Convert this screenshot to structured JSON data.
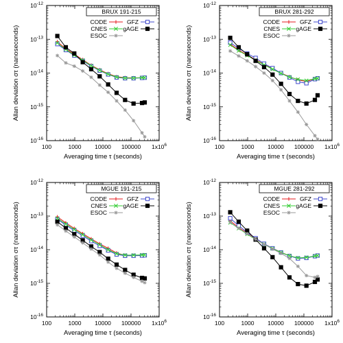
{
  "chart_data": [
    {
      "type": "line",
      "title": "BRUX 191-215",
      "xlabel": "Averaging time τ (seconds)",
      "ylabel": "Allan deviation στ (nanoseconds)",
      "x_scale": "log",
      "y_scale": "log",
      "xlim": [
        100,
        1000000
      ],
      "ylim": [
        1e-16,
        1e-12
      ],
      "x_tick_labels": [
        "100",
        "1000",
        "10000",
        "100000",
        "1x10"
      ],
      "x_tick_label_exponent": "6",
      "y_tick_labels": [
        "10",
        "10",
        "10",
        "10",
        "10"
      ],
      "y_tick_label_exponents": [
        "-12",
        "-13",
        "-14",
        "-15",
        "-16"
      ],
      "legend_placement": "top-right",
      "series": [
        {
          "name": "CODE",
          "color": "#e41a1c",
          "marker": "plus",
          "x": [
            240,
            480,
            960,
            1920,
            3840,
            7680,
            15360,
            30720,
            61440,
            122880,
            245760,
            307200
          ],
          "y": [
            8.5e-14,
            5.2e-14,
            3.6e-14,
            2.5e-14,
            1.7e-14,
            1.25e-14,
            9.6e-15,
            7.8e-15,
            7.3e-15,
            7.2e-15,
            7.3e-15,
            7.4e-15
          ]
        },
        {
          "name": "GFZ",
          "color": "#3f48cc",
          "marker": "open-square",
          "x": [
            240,
            480,
            960,
            1920,
            3840,
            7680,
            15360,
            30720,
            61440,
            122880,
            245760,
            307200
          ],
          "y": [
            7.2e-14,
            4.8e-14,
            3.3e-14,
            2.3e-14,
            1.6e-14,
            1.18e-14,
            9.1e-15,
            7.4e-15,
            7e-15,
            7e-15,
            7.2e-15,
            7.3e-15
          ]
        },
        {
          "name": "CNES",
          "color": "#33cc33",
          "marker": "cross",
          "x": [
            240,
            480,
            960,
            1920,
            3840,
            7680,
            15360,
            30720,
            61440,
            122880,
            245760,
            307200
          ],
          "y": [
            7.8e-14,
            5e-14,
            3.4e-14,
            2.4e-14,
            1.65e-14,
            1.2e-14,
            9.3e-15,
            7.6e-15,
            7.1e-15,
            7.1e-15,
            7.3e-15,
            7.3e-15
          ]
        },
        {
          "name": "gAGE",
          "color": "#000000",
          "marker": "filled-square",
          "x": [
            240,
            480,
            960,
            1920,
            3840,
            7680,
            15360,
            30720,
            61440,
            122880,
            245760,
            307200
          ],
          "y": [
            1.25e-13,
            5.8e-14,
            3.8e-14,
            2.1e-14,
            1.3e-14,
            8e-15,
            4.6e-15,
            2.6e-15,
            1.6e-15,
            1.25e-15,
            1.3e-15,
            1.35e-15
          ]
        },
        {
          "name": "ESOC",
          "color": "#999999",
          "marker": "asterisk",
          "x": [
            240,
            480,
            960,
            1920,
            3840,
            7680,
            15360,
            30720,
            61440,
            122880,
            245760,
            307200
          ],
          "y": [
            3.3e-14,
            2e-14,
            1.6e-14,
            1.15e-14,
            7.5e-15,
            4.4e-15,
            2.7e-15,
            1.5e-15,
            8e-16,
            3.9e-16,
            1.7e-16,
            1.3e-16
          ]
        }
      ]
    },
    {
      "type": "line",
      "title": "BRUX 281-292",
      "xlabel": "Averaging time τ (seconds)",
      "ylabel": "Allan deviation στ (nanoseconds)",
      "x_scale": "log",
      "y_scale": "log",
      "xlim": [
        100,
        1000000
      ],
      "ylim": [
        1e-16,
        1e-12
      ],
      "x_tick_labels": [
        "100",
        "1000",
        "10000",
        "100000",
        "1x10"
      ],
      "x_tick_label_exponent": "6",
      "y_tick_labels": [
        "10",
        "10",
        "10",
        "10",
        "10"
      ],
      "y_tick_label_exponents": [
        "-12",
        "-13",
        "-14",
        "-15",
        "-16"
      ],
      "legend_placement": "top-right",
      "series": [
        {
          "name": "CODE",
          "color": "#e41a1c",
          "marker": "plus",
          "x": [
            240,
            480,
            960,
            1920,
            3840,
            7680,
            15360,
            30720,
            61440,
            122880,
            245760,
            307200
          ],
          "y": [
            7.2e-14,
            4.8e-14,
            3.4e-14,
            2.5e-14,
            1.8e-14,
            1.35e-14,
            1e-14,
            7.8e-15,
            6.3e-15,
            5.6e-15,
            6.8e-15,
            7e-15
          ]
        },
        {
          "name": "GFZ",
          "color": "#3f48cc",
          "marker": "open-square",
          "x": [
            240,
            480,
            960,
            1920,
            3840,
            7680,
            15360,
            30720,
            61440,
            122880,
            245760,
            307200
          ],
          "y": [
            8e-14,
            5.4e-14,
            3.8e-14,
            2.8e-14,
            1.9e-14,
            1.4e-14,
            1e-14,
            7.4e-15,
            5.5e-15,
            5e-15,
            6.6e-15,
            7e-15
          ]
        },
        {
          "name": "CNES",
          "color": "#33cc33",
          "marker": "cross",
          "x": [
            240,
            480,
            960,
            1920,
            3840,
            7680,
            15360,
            30720,
            61440,
            122880,
            245760,
            307200
          ],
          "y": [
            6.8e-14,
            4.6e-14,
            3.3e-14,
            2.4e-14,
            1.75e-14,
            1.3e-14,
            9.8e-15,
            7.6e-15,
            6.5e-15,
            6e-15,
            6.8e-15,
            7e-15
          ]
        },
        {
          "name": "gAGE",
          "color": "#000000",
          "marker": "filled-square",
          "x": [
            240,
            480,
            960,
            1920,
            3840,
            7680,
            15360,
            30720,
            61440,
            122880,
            245760,
            307200
          ],
          "y": [
            1.1e-13,
            5.8e-14,
            3.6e-14,
            2.3e-14,
            1.5e-14,
            9e-15,
            4.8e-15,
            2.4e-15,
            1.5e-15,
            1.25e-15,
            1.6e-15,
            2.2e-15
          ]
        },
        {
          "name": "ESOC",
          "color": "#999999",
          "marker": "asterisk",
          "x": [
            240,
            480,
            960,
            1920,
            3840,
            7680,
            15360,
            30720,
            61440,
            122880,
            245760,
            307200
          ],
          "y": [
            4.5e-14,
            3.2e-14,
            2.3e-14,
            1.55e-14,
            1e-14,
            6e-15,
            3.2e-15,
            1.5e-15,
            7e-16,
            3e-16,
            1.4e-16,
            1.1e-16
          ]
        }
      ]
    },
    {
      "type": "line",
      "title": "MGUE 191-215",
      "xlabel": "Averaging time τ (seconds)",
      "ylabel": "Allan deviation στ (nanoseconds)",
      "x_scale": "log",
      "y_scale": "log",
      "xlim": [
        100,
        1000000
      ],
      "ylim": [
        1e-16,
        1e-12
      ],
      "x_tick_labels": [
        "100",
        "1000",
        "10000",
        "100000",
        "1x10"
      ],
      "x_tick_label_exponent": "6",
      "y_tick_labels": [
        "10",
        "10",
        "10",
        "10",
        "10"
      ],
      "y_tick_label_exponents": [
        "-12",
        "-13",
        "-14",
        "-15",
        "-16"
      ],
      "legend_placement": "top-right",
      "series": [
        {
          "name": "CODE",
          "color": "#e41a1c",
          "marker": "plus",
          "x": [
            240,
            480,
            960,
            1920,
            3840,
            7680,
            15360,
            30720,
            61440,
            122880,
            245760,
            307200
          ],
          "y": [
            9.5e-14,
            6.3e-14,
            4.3e-14,
            3e-14,
            2.1e-14,
            1.5e-14,
            1.1e-14,
            8e-15,
            6.8e-15,
            6.7e-15,
            6.8e-15,
            6.9e-15
          ]
        },
        {
          "name": "GFZ",
          "color": "#3f48cc",
          "marker": "open-square",
          "x": [
            240,
            480,
            960,
            1920,
            3840,
            7680,
            15360,
            30720,
            61440,
            122880,
            245760,
            307200
          ],
          "y": [
            8e-14,
            5.4e-14,
            3.7e-14,
            2.6e-14,
            1.8e-14,
            1.3e-14,
            9.5e-15,
            7.2e-15,
            6.6e-15,
            6.6e-15,
            6.7e-15,
            6.8e-15
          ]
        },
        {
          "name": "CNES",
          "color": "#33cc33",
          "marker": "cross",
          "x": [
            240,
            480,
            960,
            1920,
            3840,
            7680,
            15360,
            30720,
            61440,
            122880,
            245760,
            307200
          ],
          "y": [
            8.6e-14,
            5.8e-14,
            4e-14,
            2.8e-14,
            1.95e-14,
            1.4e-14,
            1e-14,
            7.6e-15,
            6.9e-15,
            6.9e-15,
            7e-15,
            7e-15
          ]
        },
        {
          "name": "gAGE",
          "color": "#000000",
          "marker": "filled-square",
          "x": [
            240,
            480,
            960,
            1920,
            3840,
            7680,
            15360,
            30720,
            61440,
            122880,
            245760,
            307200
          ],
          "y": [
            6.8e-14,
            4.4e-14,
            2.9e-14,
            1.9e-14,
            1.25e-14,
            8.5e-15,
            5.4e-15,
            3.6e-15,
            2.5e-15,
            1.8e-15,
            1.45e-15,
            1.4e-15
          ]
        },
        {
          "name": "ESOC",
          "color": "#999999",
          "marker": "asterisk",
          "x": [
            240,
            480,
            960,
            1920,
            3840,
            7680,
            15360,
            30720,
            61440,
            122880,
            245760,
            307200
          ],
          "y": [
            5.5e-14,
            3.6e-14,
            2.4e-14,
            1.6e-14,
            1.05e-14,
            7e-15,
            4.3e-15,
            2.8e-15,
            2e-15,
            1.5e-15,
            1.15e-15,
            1.05e-15
          ]
        }
      ]
    },
    {
      "type": "line",
      "title": "MGUE 281-292",
      "xlabel": "Averaging time τ (seconds)",
      "ylabel": "Allan deviation στ (nanoseconds)",
      "x_scale": "log",
      "y_scale": "log",
      "xlim": [
        100,
        1000000
      ],
      "ylim": [
        1e-16,
        1e-12
      ],
      "x_tick_labels": [
        "100",
        "1000",
        "10000",
        "100000",
        "1x10"
      ],
      "x_tick_label_exponent": "6",
      "y_tick_labels": [
        "10",
        "10",
        "10",
        "10",
        "10"
      ],
      "y_tick_label_exponents": [
        "-12",
        "-13",
        "-14",
        "-15",
        "-16"
      ],
      "legend_placement": "top-right",
      "series": [
        {
          "name": "CODE",
          "color": "#e41a1c",
          "marker": "plus",
          "x": [
            240,
            480,
            960,
            1920,
            3840,
            7680,
            15360,
            30720,
            61440,
            122880,
            245760,
            307200
          ],
          "y": [
            7.2e-14,
            4.6e-14,
            3.1e-14,
            2.1e-14,
            1.5e-14,
            1.1e-14,
            8.4e-15,
            6.6e-15,
            5.6e-15,
            5.8e-15,
            6.5e-15,
            6.7e-15
          ]
        },
        {
          "name": "GFZ",
          "color": "#3f48cc",
          "marker": "open-square",
          "x": [
            240,
            480,
            960,
            1920,
            3840,
            7680,
            15360,
            30720,
            61440,
            122880,
            245760,
            307200
          ],
          "y": [
            8.6e-14,
            5.2e-14,
            3.3e-14,
            2.2e-14,
            1.5e-14,
            1.1e-14,
            8.3e-15,
            6.5e-15,
            5.5e-15,
            5.7e-15,
            6.4e-15,
            6.7e-15
          ]
        },
        {
          "name": "CNES",
          "color": "#33cc33",
          "marker": "cross",
          "x": [
            240,
            480,
            960,
            1920,
            3840,
            7680,
            15360,
            30720,
            61440,
            122880,
            245760,
            307200
          ],
          "y": [
            6.4e-14,
            4.3e-14,
            2.9e-14,
            2e-14,
            1.45e-14,
            1.08e-14,
            8.3e-15,
            6.6e-15,
            5.7e-15,
            5.9e-15,
            6.5e-15,
            6.7e-15
          ]
        },
        {
          "name": "gAGE",
          "color": "#000000",
          "marker": "filled-square",
          "x": [
            240,
            480,
            960,
            1920,
            3840,
            7680,
            15360,
            30720,
            61440,
            122880,
            245760,
            307200
          ],
          "y": [
            1.3e-13,
            6.8e-14,
            3.7e-14,
            2e-14,
            1.1e-14,
            6e-15,
            3e-15,
            1.5e-15,
            9.5e-16,
            8.5e-16,
            1.1e-15,
            1.3e-15
          ]
        },
        {
          "name": "ESOC",
          "color": "#999999",
          "marker": "asterisk",
          "x": [
            240,
            480,
            960,
            1920,
            3840,
            7680,
            15360,
            30720,
            61440,
            122880,
            245760,
            307200
          ],
          "y": [
            6.6e-14,
            4.4e-14,
            3e-14,
            2.05e-14,
            1.45e-14,
            1.05e-14,
            7.8e-15,
            5.5e-15,
            3.2e-15,
            1.7e-15,
            1.5e-15,
            1.6e-15
          ]
        }
      ]
    }
  ]
}
